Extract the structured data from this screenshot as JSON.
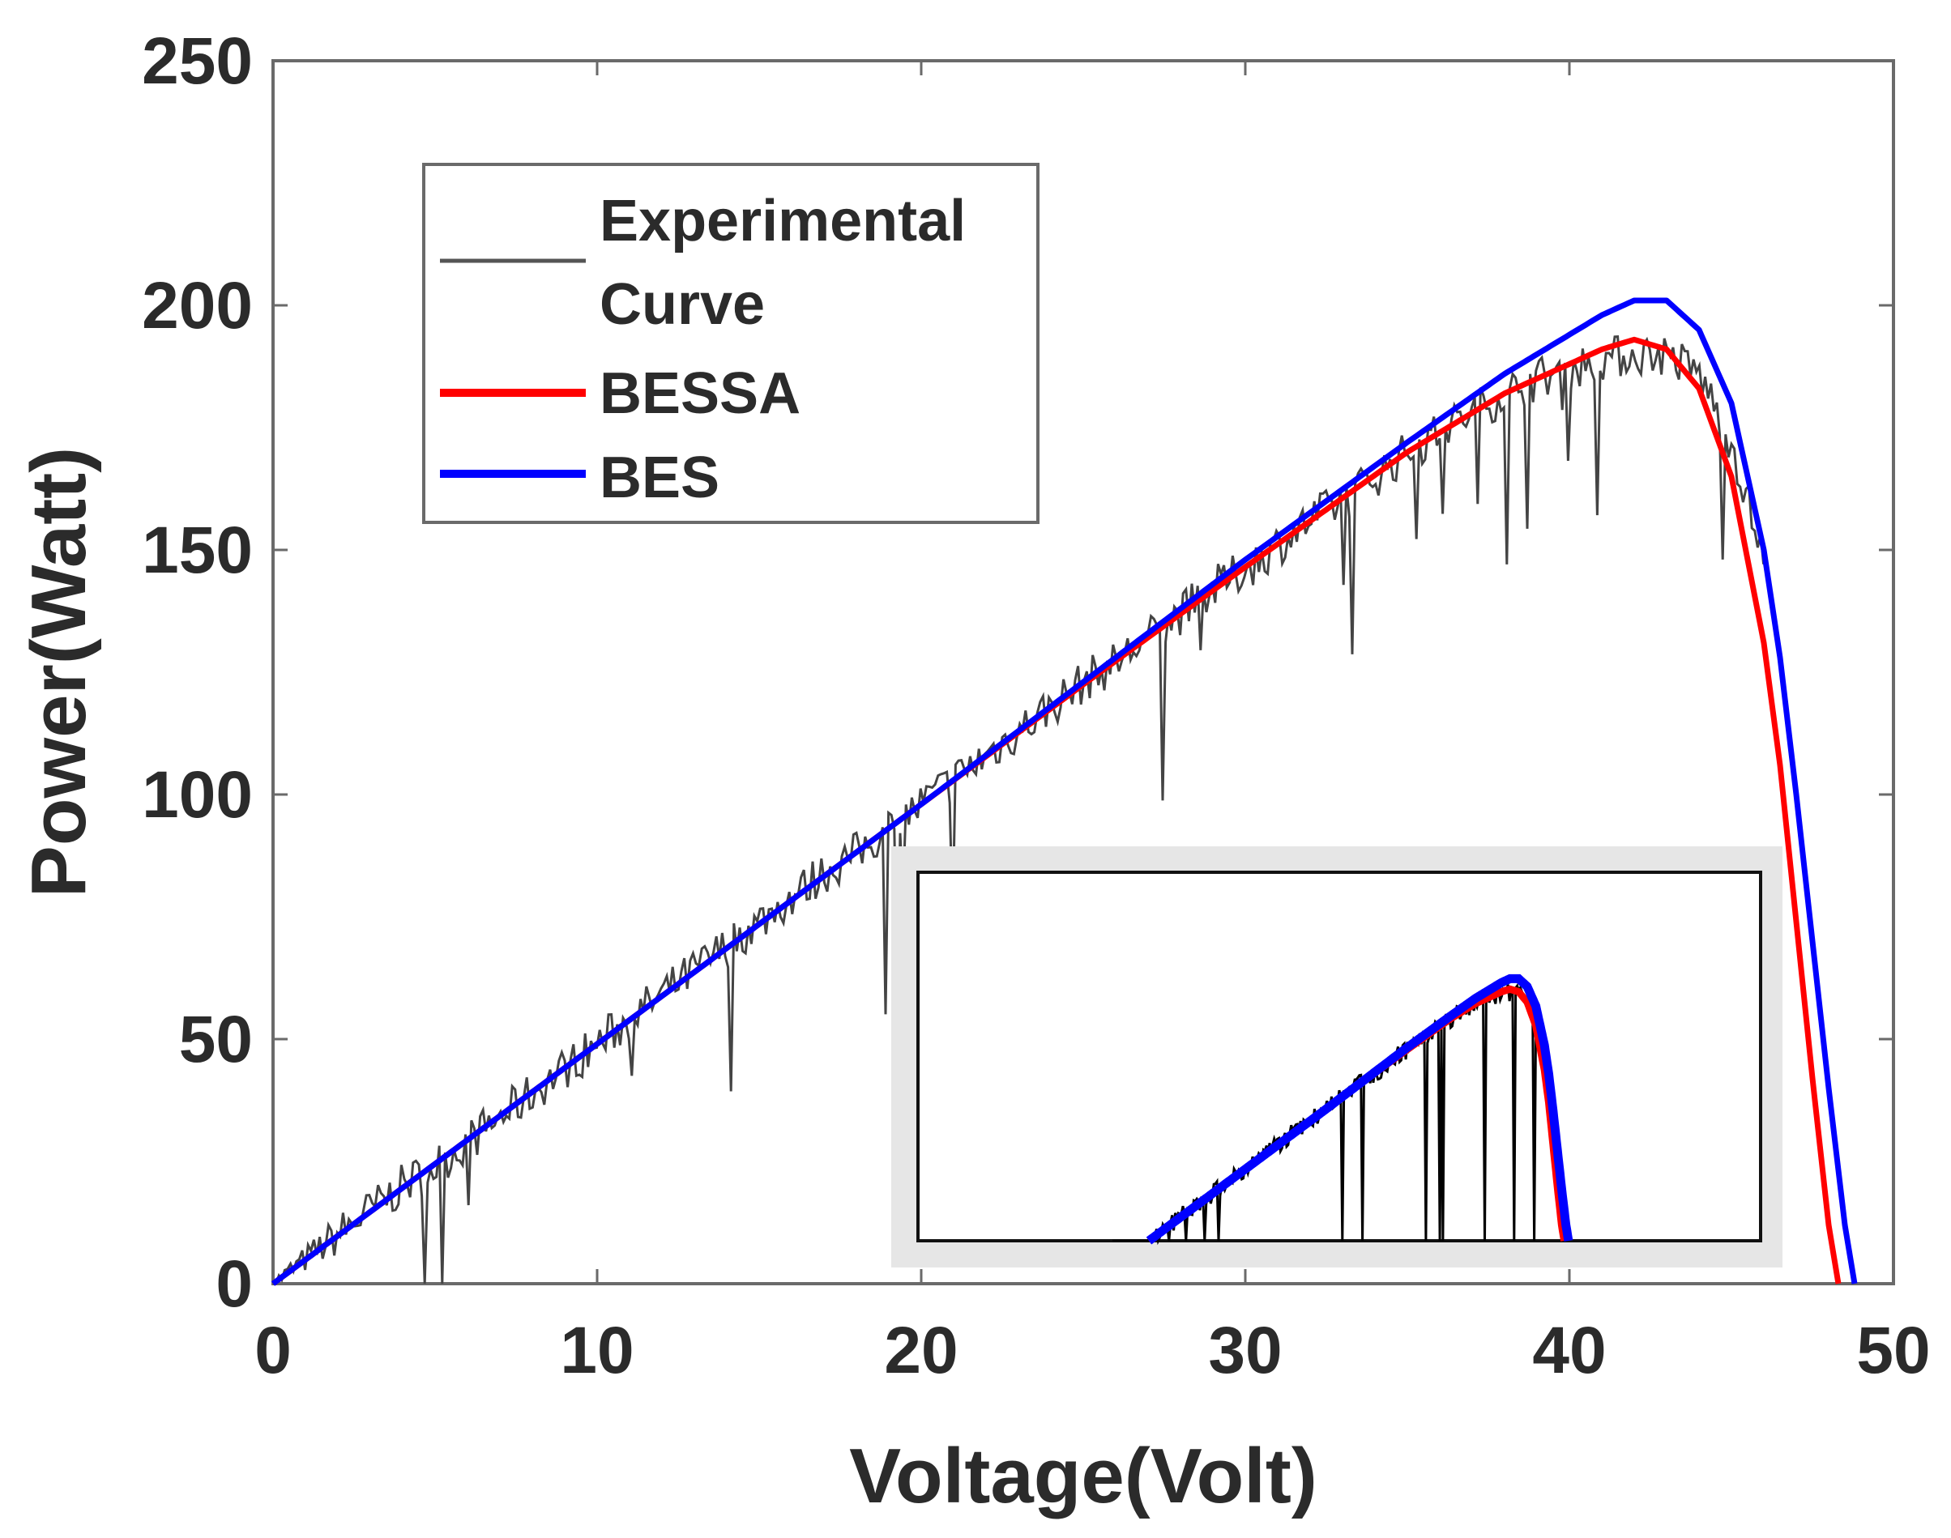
{
  "chart_data": {
    "type": "line",
    "title": "",
    "xlabel": "Voltage(Volt)",
    "ylabel": "Power(Watt)",
    "xlim": [
      0,
      50
    ],
    "ylim": [
      0,
      250
    ],
    "xticks": [
      0,
      10,
      20,
      30,
      40,
      50
    ],
    "yticks": [
      0,
      50,
      100,
      150,
      200,
      250
    ],
    "xtick_labels": [
      "0",
      "10",
      "20",
      "30",
      "40",
      "50"
    ],
    "ytick_labels": [
      "0",
      "50",
      "100",
      "150",
      "200",
      "250"
    ],
    "grid": false,
    "legend_position": "upper-left",
    "legend": [
      {
        "label_lines": [
          "Experimental",
          "Curve"
        ],
        "color": "#555555"
      },
      {
        "label_lines": [
          "BESSA"
        ],
        "color": "#ff0000"
      },
      {
        "label_lines": [
          "BES"
        ],
        "color": "#0000ff"
      }
    ],
    "series": [
      {
        "name": "Experimental Curve",
        "color": "#444444",
        "x": [
          0,
          1,
          2,
          3,
          4,
          5,
          6,
          7,
          8,
          9,
          10,
          11,
          12,
          13,
          14,
          15,
          16,
          17,
          18,
          19,
          20,
          21,
          22,
          23,
          24,
          25,
          26,
          27,
          28,
          29,
          30,
          31,
          32,
          33,
          34,
          35,
          36,
          37,
          38,
          39,
          40,
          41,
          42,
          43,
          44,
          45,
          46
        ],
        "y": [
          0,
          5,
          10,
          15,
          20,
          24,
          29,
          34,
          39,
          44,
          49,
          54,
          59,
          64,
          69,
          74,
          79,
          84,
          88,
          93,
          98,
          103,
          108,
          113,
          118,
          123,
          127,
          132,
          137,
          142,
          146,
          151,
          156,
          160,
          165,
          170,
          174,
          178,
          182,
          185,
          187,
          189,
          190,
          190,
          186,
          172,
          148
        ]
      },
      {
        "name": "BESSA",
        "color": "#ff0000",
        "x": [
          0,
          5,
          10,
          15,
          20,
          25,
          30,
          35,
          38,
          40,
          41,
          42,
          43,
          44,
          45,
          46,
          46.5,
          47,
          47.5,
          48,
          48.3
        ],
        "y": [
          0,
          24.5,
          49,
          73.5,
          98,
          122.5,
          146.5,
          170,
          182,
          188,
          191,
          193,
          191,
          183,
          165,
          131,
          106,
          74,
          42,
          12,
          0
        ]
      },
      {
        "name": "BES",
        "color": "#0000ff",
        "x": [
          0,
          5,
          10,
          15,
          20,
          25,
          30,
          35,
          38,
          40,
          41,
          42,
          43,
          44,
          45,
          46,
          46.5,
          47,
          47.5,
          48,
          48.5,
          48.8
        ],
        "y": [
          0,
          24.5,
          49,
          73.5,
          98,
          123,
          148,
          172,
          186,
          194,
          198,
          201,
          201,
          195,
          180,
          150,
          128,
          100,
          70,
          40,
          12,
          0
        ]
      }
    ],
    "inset": {
      "description_free": true,
      "series": [
        {
          "name": "Experimental Curve",
          "color": "#000000"
        },
        {
          "name": "BESSA",
          "color": "#ff0000"
        },
        {
          "name": "BES",
          "color": "#0000ff"
        }
      ]
    }
  }
}
